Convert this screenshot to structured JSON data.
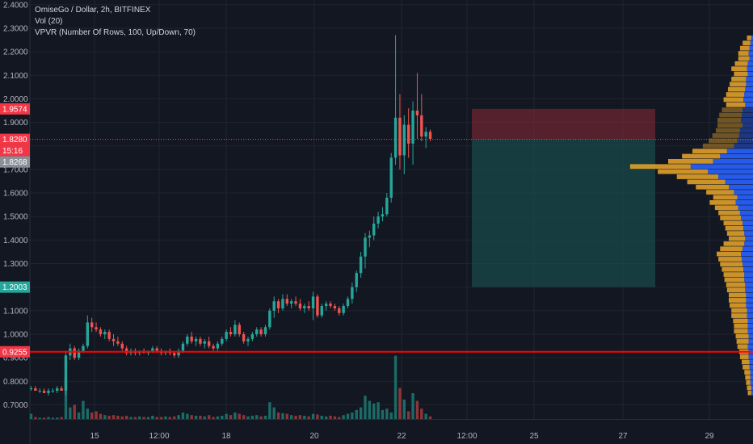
{
  "legend": {
    "symbol_line": "OmiseGo / Dollar, 2h, BITFINEX",
    "vol_line": "Vol (20)",
    "vpvr_line": "VPVR (Number Of Rows, 100, Up/Down, 70)"
  },
  "colors": {
    "background": "#131722",
    "up": "#26a69a",
    "down": "#ef5350",
    "vol_up": "#1b6b66",
    "vol_down": "#8e3538",
    "vpvr_up": "#2962ff",
    "vpvr_down": "#e0a02a",
    "support_line": "#ff0000",
    "stop_zone": "#8a2a34",
    "target_zone": "#1a5050"
  },
  "chart_data": {
    "type": "candlestick",
    "x_ticks": [
      "15",
      "12:00",
      "18",
      "20",
      "22",
      "12:00",
      "25",
      "27",
      "29"
    ],
    "y_ticks": [
      "2.4000",
      "2.3000",
      "2.2000",
      "2.1000",
      "2.0000",
      "1.9000",
      "1.8000",
      "1.7000",
      "1.6000",
      "1.5000",
      "1.4000",
      "1.3000",
      "1.2000",
      "1.1000",
      "1.0000",
      "0.9000",
      "0.8000",
      "0.7000"
    ],
    "ylim": [
      0.64,
      2.42
    ],
    "price_labels": {
      "stop": "1.9574",
      "current": "1.8280",
      "countdown": "15:16",
      "entry": "1.8268",
      "target": "1.2003",
      "support": "0.9255"
    },
    "candles_ohlc": [
      [
        0.77,
        0.78,
        0.76,
        0.77
      ],
      [
        0.77,
        0.78,
        0.76,
        0.76
      ],
      [
        0.76,
        0.77,
        0.75,
        0.76
      ],
      [
        0.76,
        0.77,
        0.75,
        0.75
      ],
      [
        0.75,
        0.77,
        0.74,
        0.76
      ],
      [
        0.76,
        0.77,
        0.75,
        0.76
      ],
      [
        0.76,
        0.78,
        0.75,
        0.77
      ],
      [
        0.77,
        0.78,
        0.76,
        0.76
      ],
      [
        0.76,
        0.93,
        0.74,
        0.91
      ],
      [
        0.91,
        0.96,
        0.89,
        0.94
      ],
      [
        0.94,
        0.95,
        0.89,
        0.9
      ],
      [
        0.9,
        0.94,
        0.89,
        0.93
      ],
      [
        0.93,
        0.96,
        0.92,
        0.95
      ],
      [
        0.95,
        1.08,
        0.94,
        1.05
      ],
      [
        1.05,
        1.07,
        1.01,
        1.03
      ],
      [
        1.03,
        1.05,
        1.01,
        1.02
      ],
      [
        1.02,
        1.03,
        0.99,
        1.0
      ],
      [
        1.0,
        1.02,
        0.98,
        1.01
      ],
      [
        1.01,
        1.02,
        0.97,
        0.98
      ],
      [
        0.98,
        1.0,
        0.95,
        0.97
      ],
      [
        0.97,
        0.99,
        0.95,
        0.96
      ],
      [
        0.96,
        0.97,
        0.93,
        0.94
      ],
      [
        0.94,
        0.95,
        0.91,
        0.92
      ],
      [
        0.92,
        0.94,
        0.91,
        0.93
      ],
      [
        0.93,
        0.94,
        0.91,
        0.92
      ],
      [
        0.92,
        0.93,
        0.91,
        0.93
      ],
      [
        0.93,
        0.94,
        0.92,
        0.92
      ],
      [
        0.92,
        0.93,
        0.91,
        0.93
      ],
      [
        0.93,
        0.95,
        0.92,
        0.94
      ],
      [
        0.94,
        0.95,
        0.92,
        0.93
      ],
      [
        0.93,
        0.94,
        0.91,
        0.92
      ],
      [
        0.92,
        0.93,
        0.91,
        0.93
      ],
      [
        0.93,
        0.94,
        0.91,
        0.92
      ],
      [
        0.92,
        0.93,
        0.9,
        0.91
      ],
      [
        0.91,
        0.94,
        0.9,
        0.93
      ],
      [
        0.93,
        0.97,
        0.92,
        0.96
      ],
      [
        0.96,
        1.0,
        0.95,
        0.99
      ],
      [
        0.99,
        1.01,
        0.96,
        0.97
      ],
      [
        0.97,
        0.99,
        0.95,
        0.98
      ],
      [
        0.98,
        0.99,
        0.95,
        0.96
      ],
      [
        0.96,
        0.98,
        0.94,
        0.97
      ],
      [
        0.97,
        0.99,
        0.94,
        0.95
      ],
      [
        0.95,
        0.96,
        0.93,
        0.94
      ],
      [
        0.94,
        0.97,
        0.93,
        0.96
      ],
      [
        0.96,
        0.99,
        0.95,
        0.98
      ],
      [
        0.98,
        1.02,
        0.97,
        1.01
      ],
      [
        1.01,
        1.03,
        0.99,
        1.0
      ],
      [
        1.0,
        1.06,
        0.99,
        1.04
      ],
      [
        1.04,
        1.05,
        0.99,
        1.0
      ],
      [
        1.0,
        1.01,
        0.96,
        0.97
      ],
      [
        0.97,
        0.99,
        0.95,
        0.98
      ],
      [
        0.98,
        1.01,
        0.97,
        1.0
      ],
      [
        1.0,
        1.03,
        0.99,
        1.02
      ],
      [
        1.02,
        1.03,
        0.99,
        1.0
      ],
      [
        1.0,
        1.04,
        0.99,
        1.03
      ],
      [
        1.03,
        1.11,
        1.02,
        1.1
      ],
      [
        1.1,
        1.16,
        1.07,
        1.14
      ],
      [
        1.14,
        1.15,
        1.09,
        1.11
      ],
      [
        1.11,
        1.17,
        1.1,
        1.15
      ],
      [
        1.15,
        1.17,
        1.12,
        1.13
      ],
      [
        1.13,
        1.15,
        1.11,
        1.14
      ],
      [
        1.14,
        1.16,
        1.12,
        1.13
      ],
      [
        1.13,
        1.15,
        1.1,
        1.11
      ],
      [
        1.11,
        1.13,
        1.09,
        1.12
      ],
      [
        1.12,
        1.14,
        1.1,
        1.11
      ],
      [
        1.11,
        1.18,
        1.06,
        1.16
      ],
      [
        1.16,
        1.17,
        1.07,
        1.08
      ],
      [
        1.08,
        1.13,
        1.07,
        1.12
      ],
      [
        1.12,
        1.14,
        1.1,
        1.13
      ],
      [
        1.13,
        1.14,
        1.11,
        1.12
      ],
      [
        1.12,
        1.13,
        1.1,
        1.11
      ],
      [
        1.11,
        1.12,
        1.08,
        1.09
      ],
      [
        1.09,
        1.13,
        1.08,
        1.12
      ],
      [
        1.12,
        1.16,
        1.11,
        1.15
      ],
      [
        1.15,
        1.22,
        1.13,
        1.2
      ],
      [
        1.2,
        1.27,
        1.18,
        1.26
      ],
      [
        1.26,
        1.35,
        1.24,
        1.33
      ],
      [
        1.33,
        1.43,
        1.28,
        1.41
      ],
      [
        1.41,
        1.44,
        1.37,
        1.42
      ],
      [
        1.42,
        1.5,
        1.4,
        1.47
      ],
      [
        1.47,
        1.52,
        1.45,
        1.5
      ],
      [
        1.5,
        1.54,
        1.48,
        1.51
      ],
      [
        1.51,
        1.6,
        1.5,
        1.58
      ],
      [
        1.58,
        1.77,
        1.56,
        1.75
      ],
      [
        1.75,
        2.27,
        1.72,
        1.92
      ],
      [
        1.92,
        2.02,
        1.7,
        1.76
      ],
      [
        1.76,
        1.93,
        1.68,
        1.89
      ],
      [
        1.89,
        1.96,
        1.75,
        1.81
      ],
      [
        1.81,
        1.99,
        1.72,
        1.95
      ],
      [
        1.95,
        2.11,
        1.83,
        1.93
      ],
      [
        1.93,
        2.02,
        1.82,
        1.84
      ],
      [
        1.84,
        1.88,
        1.79,
        1.86
      ],
      [
        1.86,
        1.87,
        1.82,
        1.83
      ]
    ],
    "volume_scale_max": 100,
    "volume": [
      8,
      3,
      2,
      2,
      3,
      2,
      2,
      3,
      62,
      18,
      22,
      10,
      28,
      16,
      10,
      12,
      8,
      6,
      5,
      6,
      5,
      4,
      5,
      3,
      3,
      4,
      3,
      3,
      5,
      3,
      3,
      4,
      3,
      4,
      6,
      10,
      8,
      6,
      5,
      5,
      4,
      6,
      3,
      4,
      5,
      8,
      6,
      10,
      8,
      6,
      4,
      5,
      6,
      4,
      5,
      26,
      18,
      10,
      9,
      8,
      6,
      5,
      6,
      5,
      4,
      8,
      7,
      5,
      4,
      5,
      4,
      3,
      6,
      8,
      10,
      14,
      18,
      36,
      28,
      24,
      26,
      14,
      16,
      10,
      98,
      48,
      30,
      12,
      40,
      28,
      16,
      8,
      4
    ],
    "vpvr_rows": [
      [
        5,
        2
      ],
      [
        9,
        3
      ],
      [
        11,
        4
      ],
      [
        12,
        5
      ],
      [
        13,
        4
      ],
      [
        15,
        6
      ],
      [
        18,
        7
      ],
      [
        16,
        6
      ],
      [
        17,
        8
      ],
      [
        19,
        8
      ],
      [
        20,
        9
      ],
      [
        21,
        10
      ],
      [
        23,
        11
      ],
      [
        22,
        9
      ],
      [
        24,
        12
      ],
      [
        26,
        13
      ],
      [
        27,
        14
      ],
      [
        29,
        12
      ],
      [
        28,
        15
      ],
      [
        31,
        16
      ],
      [
        33,
        18
      ],
      [
        36,
        22
      ],
      [
        40,
        30
      ],
      [
        44,
        38
      ],
      [
        52,
        46
      ],
      [
        70,
        72
      ],
      [
        58,
        52
      ],
      [
        48,
        40
      ],
      [
        44,
        32
      ],
      [
        38,
        28
      ],
      [
        32,
        22
      ],
      [
        28,
        18
      ],
      [
        30,
        20
      ],
      [
        27,
        17
      ],
      [
        25,
        15
      ],
      [
        24,
        14
      ],
      [
        22,
        12
      ],
      [
        21,
        11
      ],
      [
        20,
        10
      ],
      [
        19,
        9
      ],
      [
        24,
        10
      ],
      [
        26,
        12
      ],
      [
        28,
        14
      ],
      [
        27,
        13
      ],
      [
        26,
        12
      ],
      [
        25,
        11
      ],
      [
        24,
        10
      ],
      [
        23,
        10
      ],
      [
        22,
        9
      ],
      [
        21,
        9
      ],
      [
        20,
        8
      ],
      [
        20,
        8
      ],
      [
        19,
        8
      ],
      [
        18,
        7
      ],
      [
        18,
        7
      ],
      [
        17,
        6
      ],
      [
        16,
        6
      ],
      [
        16,
        6
      ],
      [
        15,
        5
      ],
      [
        14,
        5
      ],
      [
        12,
        6
      ],
      [
        11,
        5
      ],
      [
        10,
        5
      ],
      [
        9,
        4
      ],
      [
        8,
        4
      ],
      [
        7,
        3
      ],
      [
        6,
        3
      ],
      [
        5,
        3
      ],
      [
        5,
        2
      ],
      [
        4,
        2
      ]
    ]
  }
}
